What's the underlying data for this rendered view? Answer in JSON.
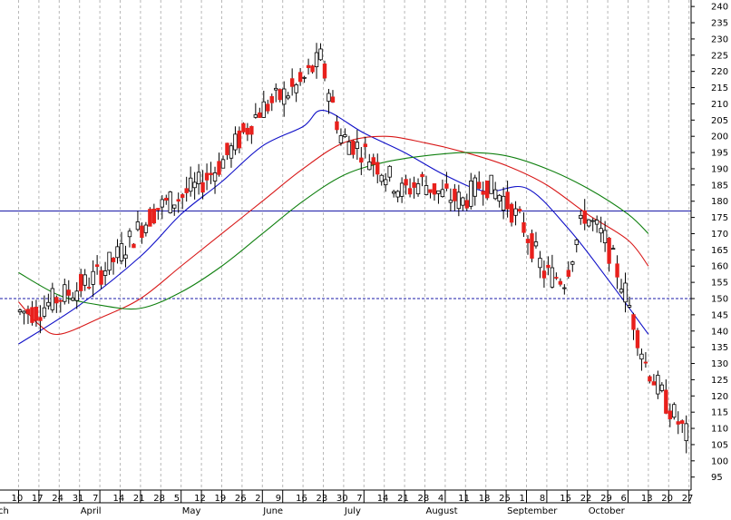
{
  "chart_data": {
    "type": "candlestick",
    "title": "",
    "xlabel": "",
    "ylabel": "",
    "ylim": [
      91,
      242
    ],
    "y_ticks": [
      95,
      100,
      105,
      110,
      115,
      120,
      125,
      130,
      135,
      140,
      145,
      150,
      155,
      160,
      165,
      170,
      175,
      180,
      185,
      190,
      195,
      200,
      205,
      210,
      215,
      220,
      225,
      230,
      235,
      240
    ],
    "x_day_ticks": [
      "10",
      "17",
      "24",
      "31",
      "7",
      "14",
      "21",
      "28",
      "5",
      "12",
      "19",
      "26",
      "2",
      "9",
      "16",
      "23",
      "30",
      "7",
      "14",
      "21",
      "28",
      "4",
      "11",
      "18",
      "25",
      "1",
      "8",
      "15",
      "22",
      "29",
      "6",
      "13",
      "20",
      "27"
    ],
    "x_month_labels": [
      {
        "label": "arch",
        "tick_index": 0
      },
      {
        "label": "April",
        "tick_index": 3
      },
      {
        "label": "May",
        "tick_index": 8
      },
      {
        "label": "June",
        "tick_index": 12
      },
      {
        "label": "July",
        "tick_index": 16
      },
      {
        "label": "August",
        "tick_index": 20
      },
      {
        "label": "September",
        "tick_index": 24
      },
      {
        "label": "October",
        "tick_index": 28
      }
    ],
    "reference_lines": [
      {
        "value": 177,
        "style": "solid",
        "color": "#1a1aa8"
      },
      {
        "value": 150,
        "style": "dashed",
        "color": "#1a1aa8"
      }
    ],
    "grid": "vertical-dashed",
    "up_color": "#ffffff",
    "down_color": "#e8201c",
    "candles_weekly_closes": [
      146,
      150,
      153,
      157,
      163,
      171,
      178,
      181,
      185,
      191,
      199,
      208,
      212,
      216,
      224,
      200,
      196,
      190,
      183,
      186,
      182,
      180,
      186,
      181,
      172,
      158,
      156,
      176,
      168,
      152,
      130,
      118,
      108
    ],
    "moving_averages": [
      {
        "color": "#1010c8",
        "tick_values": [
          [
            0,
            136
          ],
          [
            3,
            148
          ],
          [
            6,
            163
          ],
          [
            8,
            176
          ],
          [
            10,
            186
          ],
          [
            12,
            197
          ],
          [
            14,
            203
          ],
          [
            15,
            208
          ],
          [
            17,
            201
          ],
          [
            19,
            195
          ],
          [
            21,
            188
          ],
          [
            23,
            183
          ],
          [
            25,
            184
          ],
          [
            27,
            172
          ],
          [
            29,
            156
          ],
          [
            31,
            139
          ]
        ]
      },
      {
        "color": "#d81818",
        "tick_values": [
          [
            0,
            149
          ],
          [
            1,
            142
          ],
          [
            2,
            139
          ],
          [
            4,
            144
          ],
          [
            6,
            150
          ],
          [
            8,
            160
          ],
          [
            10,
            170
          ],
          [
            12,
            180
          ],
          [
            14,
            190
          ],
          [
            16,
            198
          ],
          [
            18,
            200
          ],
          [
            20,
            198
          ],
          [
            22,
            195
          ],
          [
            24,
            191
          ],
          [
            26,
            185
          ],
          [
            28,
            176
          ],
          [
            30,
            168
          ],
          [
            31,
            160
          ]
        ]
      },
      {
        "color": "#108010",
        "tick_values": [
          [
            0,
            158
          ],
          [
            2,
            151
          ],
          [
            4,
            148
          ],
          [
            6,
            147
          ],
          [
            8,
            152
          ],
          [
            10,
            160
          ],
          [
            12,
            170
          ],
          [
            14,
            180
          ],
          [
            16,
            188
          ],
          [
            18,
            192
          ],
          [
            20,
            194
          ],
          [
            22,
            195
          ],
          [
            24,
            194
          ],
          [
            26,
            190
          ],
          [
            28,
            184
          ],
          [
            30,
            176
          ],
          [
            31,
            170
          ]
        ]
      }
    ]
  }
}
